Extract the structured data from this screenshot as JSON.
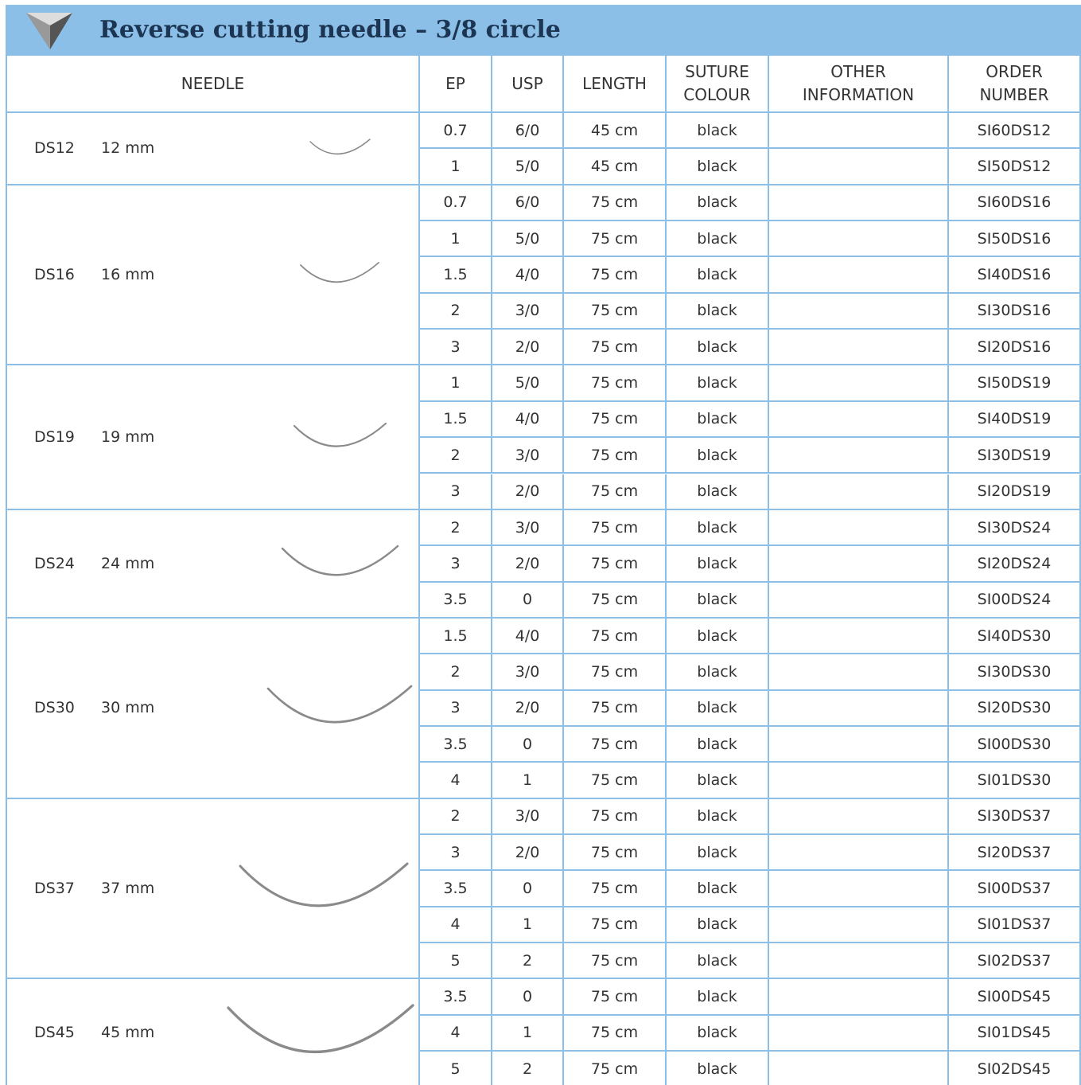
{
  "header": {
    "title": "Reverse cutting needle – 3/8 circle"
  },
  "table": {
    "columns": [
      "NEEDLE",
      "EP",
      "USP",
      "LENGTH",
      "SUTURE COLOUR",
      "OTHER INFORMATION",
      "ORDER NUMBER"
    ],
    "groups": [
      {
        "code": "DS12",
        "size": "12 mm",
        "rows": [
          [
            0.7,
            "6/0",
            "45 cm",
            "black",
            "SI60DS12"
          ],
          [
            1,
            "5/0",
            "45 cm",
            "black",
            "SI50DS12"
          ]
        ]
      },
      {
        "code": "DS16",
        "size": "16 mm",
        "rows": [
          [
            0.7,
            "6/0",
            "75 cm",
            "black",
            "SI60DS16"
          ],
          [
            1,
            "5/0",
            "75 cm",
            "black",
            "SI50DS16"
          ],
          [
            1.5,
            "4/0",
            "75 cm",
            "black",
            "SI40DS16"
          ],
          [
            2,
            "3/0",
            "75 cm",
            "black",
            "SI30DS16"
          ],
          [
            3,
            "2/0",
            "75 cm",
            "black",
            "SI20DS16"
          ]
        ]
      },
      {
        "code": "DS19",
        "size": "19 mm",
        "rows": [
          [
            1,
            "5/0",
            "75 cm",
            "black",
            "SI50DS19"
          ],
          [
            1.5,
            "4/0",
            "75 cm",
            "black",
            "SI40DS19"
          ],
          [
            2,
            "3/0",
            "75 cm",
            "black",
            "SI30DS19"
          ],
          [
            3,
            "2/0",
            "75 cm",
            "black",
            "SI20DS19"
          ]
        ]
      },
      {
        "code": "DS24",
        "size": "24 mm",
        "rows": [
          [
            2,
            "3/0",
            "75 cm",
            "black",
            "SI30DS24"
          ],
          [
            3,
            "2/0",
            "75 cm",
            "black",
            "SI20DS24"
          ],
          [
            3.5,
            "0",
            "75 cm",
            "black",
            "SI00DS24"
          ]
        ]
      },
      {
        "code": "DS30",
        "size": "30 mm",
        "rows": [
          [
            1.5,
            "4/0",
            "75 cm",
            "black",
            "SI40DS30"
          ],
          [
            2,
            "3/0",
            "75 cm",
            "black",
            "SI30DS30"
          ],
          [
            3,
            "2/0",
            "75 cm",
            "black",
            "SI20DS30"
          ],
          [
            3.5,
            "0",
            "75 cm",
            "black",
            "SI00DS30"
          ],
          [
            4,
            "1",
            "75 cm",
            "black",
            "SI01DS30"
          ]
        ]
      },
      {
        "code": "DS37",
        "size": "37 mm",
        "rows": [
          [
            2,
            "3/0",
            "75 cm",
            "black",
            "SI30DS37"
          ],
          [
            3,
            "2/0",
            "75 cm",
            "black",
            "SI20DS37"
          ],
          [
            3.5,
            "0",
            "75 cm",
            "black",
            "SI00DS37"
          ],
          [
            4,
            "1",
            "75 cm",
            "black",
            "SI01DS37"
          ],
          [
            5,
            "2",
            "75 cm",
            "black",
            "SI02DS37"
          ]
        ]
      },
      {
        "code": "DS45",
        "size": "45 mm",
        "rows": [
          [
            3.5,
            "0",
            "75 cm",
            "black",
            "SI00DS45"
          ],
          [
            4,
            "1",
            "75 cm",
            "black",
            "SI01DS45"
          ],
          [
            5,
            "2",
            "75 cm",
            "black",
            "SI02DS45"
          ]
        ]
      }
    ]
  }
}
